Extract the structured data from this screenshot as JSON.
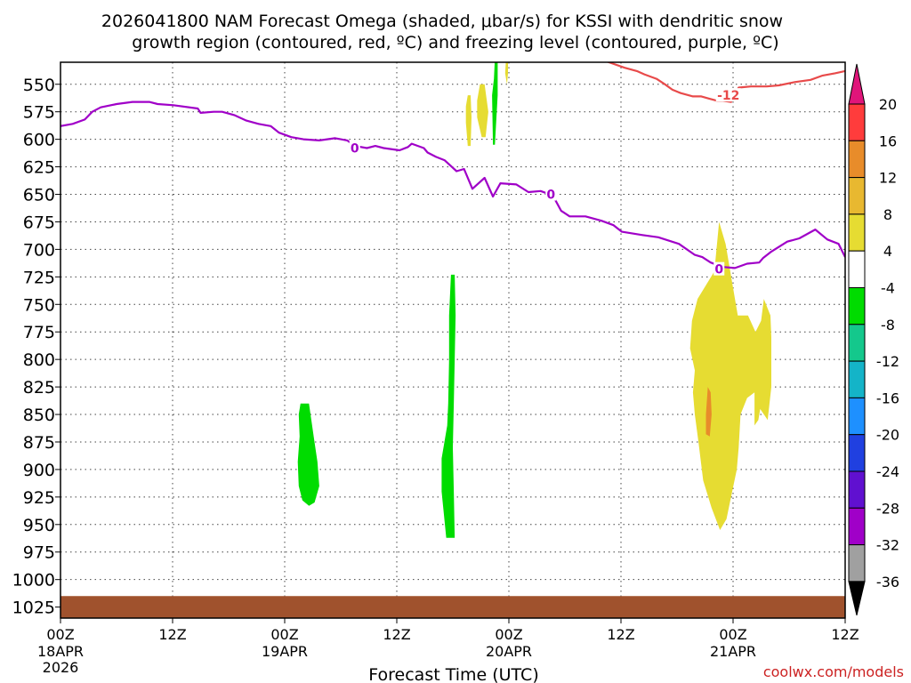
{
  "chart_data": {
    "type": "time-height cross section",
    "title_line1": "2026041800 NAM Forecast Omega (shaded, μbar/s) for KSSI with dendritic snow",
    "title_line2": "growth region (contoured, red, ºC) and freezing level (contoured, purple, ºC)",
    "xlabel": "Forecast Time (UTC)",
    "ylabel": "",
    "credit": "coolwx.com/models",
    "xlim_hours": [
      0,
      84
    ],
    "ylim_hPa": [
      530,
      1035
    ],
    "y_ticks": [
      550,
      575,
      600,
      625,
      650,
      675,
      700,
      725,
      750,
      775,
      800,
      825,
      850,
      875,
      900,
      925,
      950,
      975,
      1000,
      1025
    ],
    "x_ticks": [
      {
        "hour": 0,
        "line1": "00Z",
        "line2": "18APR",
        "line3": "2026"
      },
      {
        "hour": 12,
        "line1": "12Z",
        "line2": "",
        "line3": ""
      },
      {
        "hour": 24,
        "line1": "00Z",
        "line2": "19APR",
        "line3": ""
      },
      {
        "hour": 36,
        "line1": "12Z",
        "line2": "",
        "line3": ""
      },
      {
        "hour": 48,
        "line1": "00Z",
        "line2": "20APR",
        "line3": ""
      },
      {
        "hour": 60,
        "line1": "12Z",
        "line2": "",
        "line3": ""
      },
      {
        "hour": 72,
        "line1": "00Z",
        "line2": "21APR",
        "line3": ""
      },
      {
        "hour": 84,
        "line1": "12Z",
        "line2": "",
        "line3": ""
      }
    ],
    "grid": true,
    "freezing_level": {
      "label": "0",
      "color": "#a000c8",
      "label_points": [
        [
          31.5,
          608
        ],
        [
          52.5,
          650
        ],
        [
          70.5,
          718
        ]
      ],
      "points": [
        [
          0,
          588
        ],
        [
          1.3,
          586
        ],
        [
          2.6,
          582
        ],
        [
          3.4,
          575
        ],
        [
          4.3,
          571
        ],
        [
          6,
          568
        ],
        [
          7.7,
          566
        ],
        [
          9.5,
          566
        ],
        [
          10.4,
          568
        ],
        [
          12.1,
          569
        ],
        [
          14.7,
          572
        ],
        [
          15,
          576
        ],
        [
          16.4,
          575
        ],
        [
          17.3,
          575
        ],
        [
          18.6,
          578
        ],
        [
          19.9,
          583
        ],
        [
          21.2,
          586
        ],
        [
          22.5,
          588
        ],
        [
          23.4,
          594
        ],
        [
          24.7,
          598
        ],
        [
          26,
          600
        ],
        [
          27.7,
          601
        ],
        [
          29.4,
          599
        ],
        [
          30.7,
          601
        ],
        [
          31.5,
          606
        ],
        [
          32.8,
          608
        ],
        [
          33.7,
          606
        ],
        [
          34.6,
          608
        ],
        [
          36.3,
          610
        ],
        [
          37.2,
          607
        ],
        [
          37.6,
          604
        ],
        [
          38.9,
          608
        ],
        [
          39.3,
          612
        ],
        [
          40.2,
          616
        ],
        [
          41.1,
          619
        ],
        [
          42.4,
          629
        ],
        [
          43.2,
          627
        ],
        [
          44.1,
          645
        ],
        [
          45.4,
          635
        ],
        [
          46.3,
          652
        ],
        [
          47.1,
          640
        ],
        [
          48.8,
          641
        ],
        [
          50.1,
          648
        ],
        [
          51.4,
          647
        ],
        [
          52.7,
          651
        ],
        [
          53.6,
          665
        ],
        [
          54.5,
          670
        ],
        [
          56.2,
          670
        ],
        [
          57.9,
          674
        ],
        [
          59.2,
          678
        ],
        [
          60.1,
          684
        ],
        [
          62.3,
          687
        ],
        [
          64,
          689
        ],
        [
          66.2,
          695
        ],
        [
          67.9,
          705
        ],
        [
          68.7,
          707
        ],
        [
          69.6,
          712
        ],
        [
          70.9,
          716
        ],
        [
          72.2,
          717
        ],
        [
          73.5,
          713
        ],
        [
          74.8,
          712
        ],
        [
          75.2,
          708
        ],
        [
          76.1,
          702
        ],
        [
          77.8,
          693
        ],
        [
          79.1,
          690
        ],
        [
          80.8,
          682
        ],
        [
          82.1,
          691
        ],
        [
          83.3,
          695
        ],
        [
          84,
          707
        ]
      ]
    },
    "dgz_isotherm": {
      "label": "-12",
      "color": "#e84a4a",
      "label_points": [
        [
          71.5,
          560
        ]
      ],
      "points": [
        [
          56.6,
          523
        ],
        [
          58.7,
          530
        ],
        [
          60.4,
          535
        ],
        [
          61.7,
          538
        ],
        [
          62.5,
          541
        ],
        [
          63.8,
          545
        ],
        [
          64.7,
          550
        ],
        [
          65.5,
          555
        ],
        [
          66.4,
          558
        ],
        [
          67.7,
          561
        ],
        [
          68.6,
          561
        ],
        [
          69.4,
          563
        ],
        [
          70.3,
          565
        ],
        [
          70.9,
          565
        ],
        [
          71.8,
          566
        ],
        [
          72.2,
          558
        ],
        [
          72.6,
          553
        ],
        [
          73.9,
          552
        ],
        [
          75.6,
          552
        ],
        [
          76.9,
          551
        ],
        [
          78.6,
          548
        ],
        [
          80.3,
          546
        ],
        [
          81.6,
          542
        ],
        [
          82.9,
          540
        ],
        [
          84,
          538
        ]
      ]
    },
    "omega_shading": [
      {
        "level": "-8 to -4",
        "color": "#00dc00",
        "points": [
          [
            25.7,
            840
          ],
          [
            26.6,
            840
          ],
          [
            27.1,
            870
          ],
          [
            27.5,
            893
          ],
          [
            27.7,
            915
          ],
          [
            27.2,
            930
          ],
          [
            26.6,
            933
          ],
          [
            25.9,
            928
          ],
          [
            25.5,
            915
          ],
          [
            25.4,
            893
          ],
          [
            25.6,
            870
          ],
          [
            25.5,
            850
          ]
        ]
      },
      {
        "level": "-8 to -4",
        "color": "#00dc00",
        "points": [
          [
            41.8,
            723
          ],
          [
            42.2,
            723
          ],
          [
            42.3,
            760
          ],
          [
            42.2,
            800
          ],
          [
            42.1,
            840
          ],
          [
            42.0,
            880
          ],
          [
            42.1,
            920
          ],
          [
            42.2,
            962
          ],
          [
            41.3,
            962
          ],
          [
            40.8,
            920
          ],
          [
            40.8,
            890
          ],
          [
            41.0,
            880
          ],
          [
            41.4,
            860
          ],
          [
            41.5,
            840
          ],
          [
            41.6,
            800
          ],
          [
            41.6,
            760
          ]
        ]
      },
      {
        "level": "-8 to -4",
        "color": "#00dc00",
        "points": [
          [
            46.5,
            526
          ],
          [
            46.8,
            526
          ],
          [
            46.8,
            560
          ],
          [
            46.5,
            605
          ],
          [
            46.3,
            605
          ],
          [
            46.2,
            560
          ],
          [
            46.4,
            545
          ]
        ]
      },
      {
        "level": "4 to 8",
        "color": "#e6dc32",
        "points": [
          [
            43.6,
            560
          ],
          [
            43.9,
            560
          ],
          [
            44.0,
            580
          ],
          [
            43.9,
            606
          ],
          [
            43.6,
            606
          ],
          [
            43.4,
            585
          ],
          [
            43.4,
            570
          ]
        ]
      },
      {
        "level": "4 to 8",
        "color": "#e6dc32",
        "points": [
          [
            44.9,
            550
          ],
          [
            45.4,
            550
          ],
          [
            45.8,
            575
          ],
          [
            45.5,
            598
          ],
          [
            45.1,
            598
          ],
          [
            44.6,
            580
          ],
          [
            44.6,
            565
          ]
        ]
      },
      {
        "level": "4 to 8",
        "color": "#e6dc32",
        "points": [
          [
            47.7,
            527
          ],
          [
            47.9,
            527
          ],
          [
            47.9,
            540
          ],
          [
            47.8,
            550
          ],
          [
            47.6,
            540
          ]
        ]
      },
      {
        "level": "4 to 8",
        "color": "#e6dc32",
        "points": [
          [
            70.0,
            720
          ],
          [
            70.5,
            675
          ],
          [
            71.2,
            695
          ],
          [
            72.0,
            735
          ],
          [
            72.5,
            760
          ],
          [
            73.6,
            760
          ],
          [
            74.4,
            775
          ],
          [
            75.0,
            765
          ],
          [
            75.3,
            745
          ],
          [
            76.0,
            760
          ],
          [
            76.1,
            780
          ],
          [
            76.1,
            825
          ],
          [
            75.7,
            855
          ],
          [
            74.9,
            845
          ],
          [
            74.7,
            855
          ],
          [
            74.3,
            860
          ],
          [
            74.3,
            830
          ],
          [
            73.5,
            835
          ],
          [
            72.8,
            850
          ],
          [
            72.6,
            880
          ],
          [
            72.4,
            900
          ],
          [
            71.9,
            920
          ],
          [
            71.3,
            945
          ],
          [
            70.6,
            955
          ],
          [
            69.7,
            935
          ],
          [
            68.8,
            910
          ],
          [
            68.3,
            875
          ],
          [
            67.9,
            850
          ],
          [
            67.7,
            830
          ],
          [
            67.9,
            810
          ],
          [
            67.4,
            790
          ],
          [
            67.6,
            765
          ],
          [
            68.2,
            745
          ]
        ]
      },
      {
        "level": "12 to 16",
        "color": "#e88c2a",
        "points": [
          [
            69.3,
            825
          ],
          [
            69.6,
            830
          ],
          [
            69.7,
            850
          ],
          [
            69.5,
            870
          ],
          [
            69.1,
            868
          ],
          [
            69.1,
            850
          ]
        ]
      }
    ],
    "surface_fill_color": "#a0522d",
    "colorbar": {
      "under_color": "#000000",
      "over_color": "#e0157a",
      "boundaries": [
        -36,
        -32,
        -28,
        -24,
        -20,
        -16,
        -12,
        -8,
        -4,
        4,
        8,
        12,
        16,
        20
      ],
      "tick_labels": [
        "20",
        "16",
        "12",
        "8",
        "4",
        "-4",
        "-8",
        "-12",
        "-16",
        "-20",
        "-24",
        "-28",
        "-32",
        "-36"
      ],
      "colors_top_to_bottom": [
        "#ff3c3c",
        "#e88c2a",
        "#e8b830",
        "#e6dc32",
        "#ffffff",
        "#00dc00",
        "#14c88c",
        "#14b4c8",
        "#1e90ff",
        "#2040e0",
        "#6010d0",
        "#a000c8",
        "#a0a0a0"
      ]
    }
  }
}
